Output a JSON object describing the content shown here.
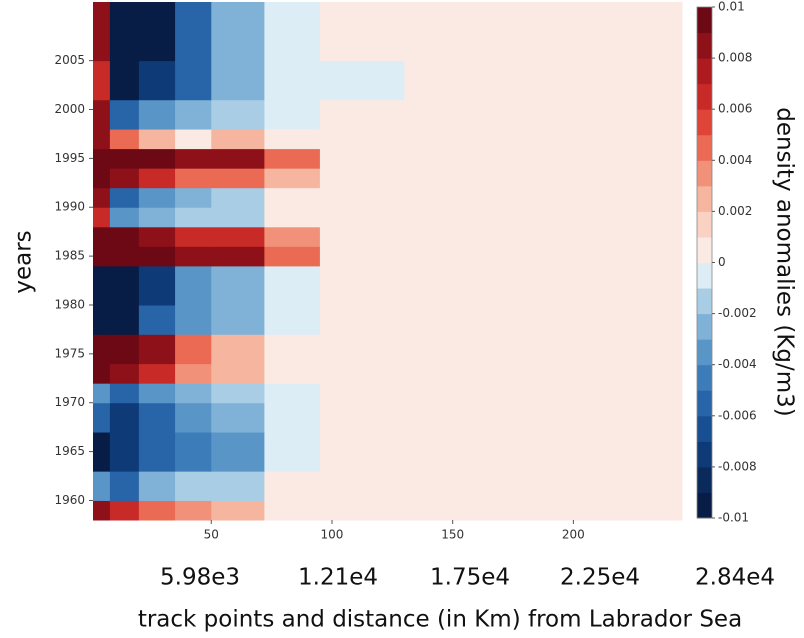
{
  "chart_data": {
    "type": "heatmap",
    "y_label": "years",
    "x_label": "track points and distance (in Km) from Labrador Sea",
    "colorbar_label": "density anomalies (Kg/m3)",
    "distance_labels": [
      "5.98e3",
      "1.21e4",
      "1.75e4",
      "2.25e4",
      "2.84e4"
    ],
    "xlim": [
      1,
      245
    ],
    "ylim": [
      1958,
      2011
    ],
    "xticks": [
      50,
      100,
      150,
      200
    ],
    "yticks": [
      1960,
      1965,
      1970,
      1975,
      1980,
      1985,
      1990,
      1995,
      2000,
      2005
    ],
    "zlim": [
      -0.01,
      0.01
    ],
    "zticks": [
      -0.01,
      -0.008,
      -0.006,
      -0.004,
      -0.002,
      0,
      0.002,
      0.004,
      0.006,
      0.008,
      0.01
    ],
    "colors": [
      "#081d45",
      "#0b2a5c",
      "#0f3a78",
      "#184f93",
      "#2765a8",
      "#3b7cb9",
      "#5a95c8",
      "#80b2d8",
      "#a9cde4",
      "#dcedf5",
      "#fbeae4",
      "#f9d2c3",
      "#f5b59f",
      "#f1917a",
      "#ea6a53",
      "#de4536",
      "#c82b27",
      "#ad1b1f",
      "#8e111a",
      "#6d0914"
    ],
    "x_edges": [
      1,
      8,
      20,
      35,
      50,
      72,
      95,
      130,
      170,
      210,
      245
    ],
    "y_edges": [
      1958,
      1960,
      1963,
      1967,
      1970,
      1972,
      1974,
      1977,
      1980,
      1984,
      1986,
      1988,
      1990,
      1992,
      1994,
      1996,
      1998,
      2001,
      2005,
      2011
    ],
    "z": [
      [
        0.008,
        0.006,
        0.004,
        0.003,
        0.002,
        0.001,
        0,
        0,
        0,
        0
      ],
      [
        -0.004,
        -0.006,
        -0.003,
        -0.002,
        -0.002,
        0,
        0,
        0,
        0,
        0
      ],
      [
        -0.01,
        -0.008,
        -0.006,
        -0.005,
        -0.004,
        -0.001,
        0,
        0,
        0,
        0
      ],
      [
        -0.006,
        -0.008,
        -0.006,
        -0.004,
        -0.003,
        -0.001,
        0,
        0,
        0,
        0
      ],
      [
        -0.004,
        -0.006,
        -0.004,
        -0.003,
        -0.002,
        -0.0005,
        0,
        0.0005,
        0.0005,
        0
      ],
      [
        0.01,
        0.008,
        0.006,
        0.003,
        0.002,
        0.001,
        0.0005,
        0.001,
        0.0005,
        0.0003
      ],
      [
        0.01,
        0.01,
        0.008,
        0.004,
        0.002,
        0.001,
        0.001,
        0.001,
        0.0005,
        0.0003
      ],
      [
        -0.01,
        -0.01,
        -0.006,
        -0.004,
        -0.003,
        -0.001,
        0,
        0.0005,
        0.0005,
        0.0003
      ],
      [
        -0.01,
        -0.01,
        -0.008,
        -0.004,
        -0.003,
        -0.001,
        0,
        0.0005,
        0.0005,
        0.0003
      ],
      [
        0.01,
        0.01,
        0.01,
        0.008,
        0.008,
        0.004,
        0.001,
        0.001,
        0.0005,
        0.0005
      ],
      [
        0.01,
        0.01,
        0.008,
        0.006,
        0.006,
        0.003,
        0.001,
        0.001,
        0.0005,
        0.0005
      ],
      [
        0.006,
        -0.004,
        -0.003,
        -0.002,
        -0.002,
        0,
        0.0005,
        0.0005,
        0.0005,
        0.0003
      ],
      [
        0.008,
        -0.006,
        -0.004,
        -0.003,
        -0.002,
        0,
        0.0005,
        0.0005,
        0.0005,
        0.0003
      ],
      [
        0.01,
        0.008,
        0.006,
        0.004,
        0.004,
        0.002,
        0.001,
        0.001,
        0.0005,
        0.0003
      ],
      [
        0.01,
        0.01,
        0.01,
        0.008,
        0.008,
        0.004,
        0.001,
        0.001,
        0.0005,
        0.0003
      ],
      [
        0.008,
        0.004,
        0.002,
        0.001,
        0.002,
        0.001,
        0.0005,
        0.0005,
        0.0003,
        0
      ],
      [
        0.008,
        -0.006,
        -0.004,
        -0.003,
        -0.002,
        -0.0005,
        0,
        0,
        0,
        0
      ],
      [
        0.006,
        -0.01,
        -0.008,
        -0.006,
        -0.003,
        -0.001,
        -0.0005,
        0,
        0,
        0
      ],
      [
        0.008,
        -0.01,
        -0.01,
        -0.006,
        -0.003,
        -0.0005,
        0,
        0,
        0,
        0
      ]
    ]
  }
}
